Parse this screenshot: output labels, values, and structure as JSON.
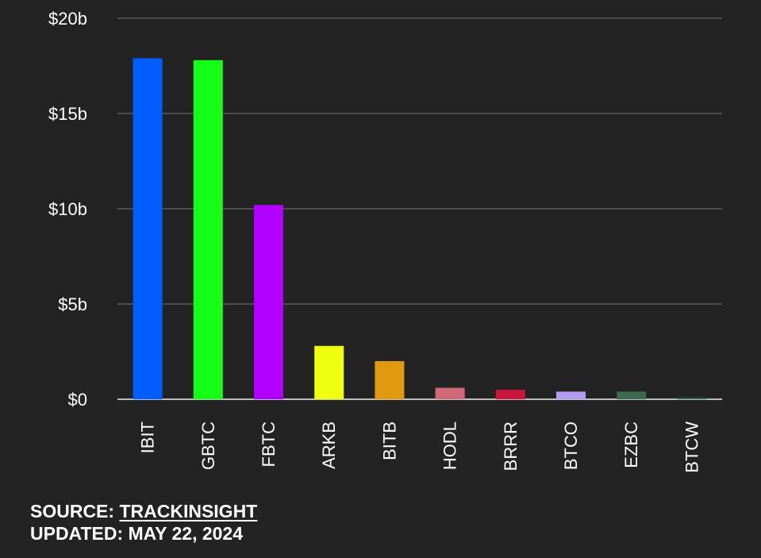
{
  "chart_data": {
    "type": "bar",
    "title": "",
    "xlabel": "",
    "ylabel": "",
    "categories": [
      "IBIT",
      "GBTC",
      "FBTC",
      "ARKB",
      "BITB",
      "HODL",
      "BRRR",
      "BTCO",
      "EZBC",
      "BTCW"
    ],
    "values": [
      17.9,
      17.8,
      10.2,
      2.8,
      2.0,
      0.6,
      0.5,
      0.4,
      0.4,
      0.08
    ],
    "colors": [
      "#005dff",
      "#16ff16",
      "#b000ff",
      "#f0ff10",
      "#e09a10",
      "#d06a78",
      "#c8163c",
      "#b49cf0",
      "#3d6b52",
      "#2a6a56"
    ],
    "ylim": [
      0,
      20
    ],
    "yticks": [
      0,
      5,
      10,
      15,
      20
    ],
    "ytick_labels": [
      "$0",
      "$5b",
      "$10b",
      "$15b",
      "$20b"
    ],
    "grid": true,
    "legend": "none"
  },
  "footer": {
    "source_label": "SOURCE:",
    "source_name": "TRACKINSIGHT",
    "updated_label": "UPDATED:",
    "updated_date": "MAY 22, 2024"
  }
}
